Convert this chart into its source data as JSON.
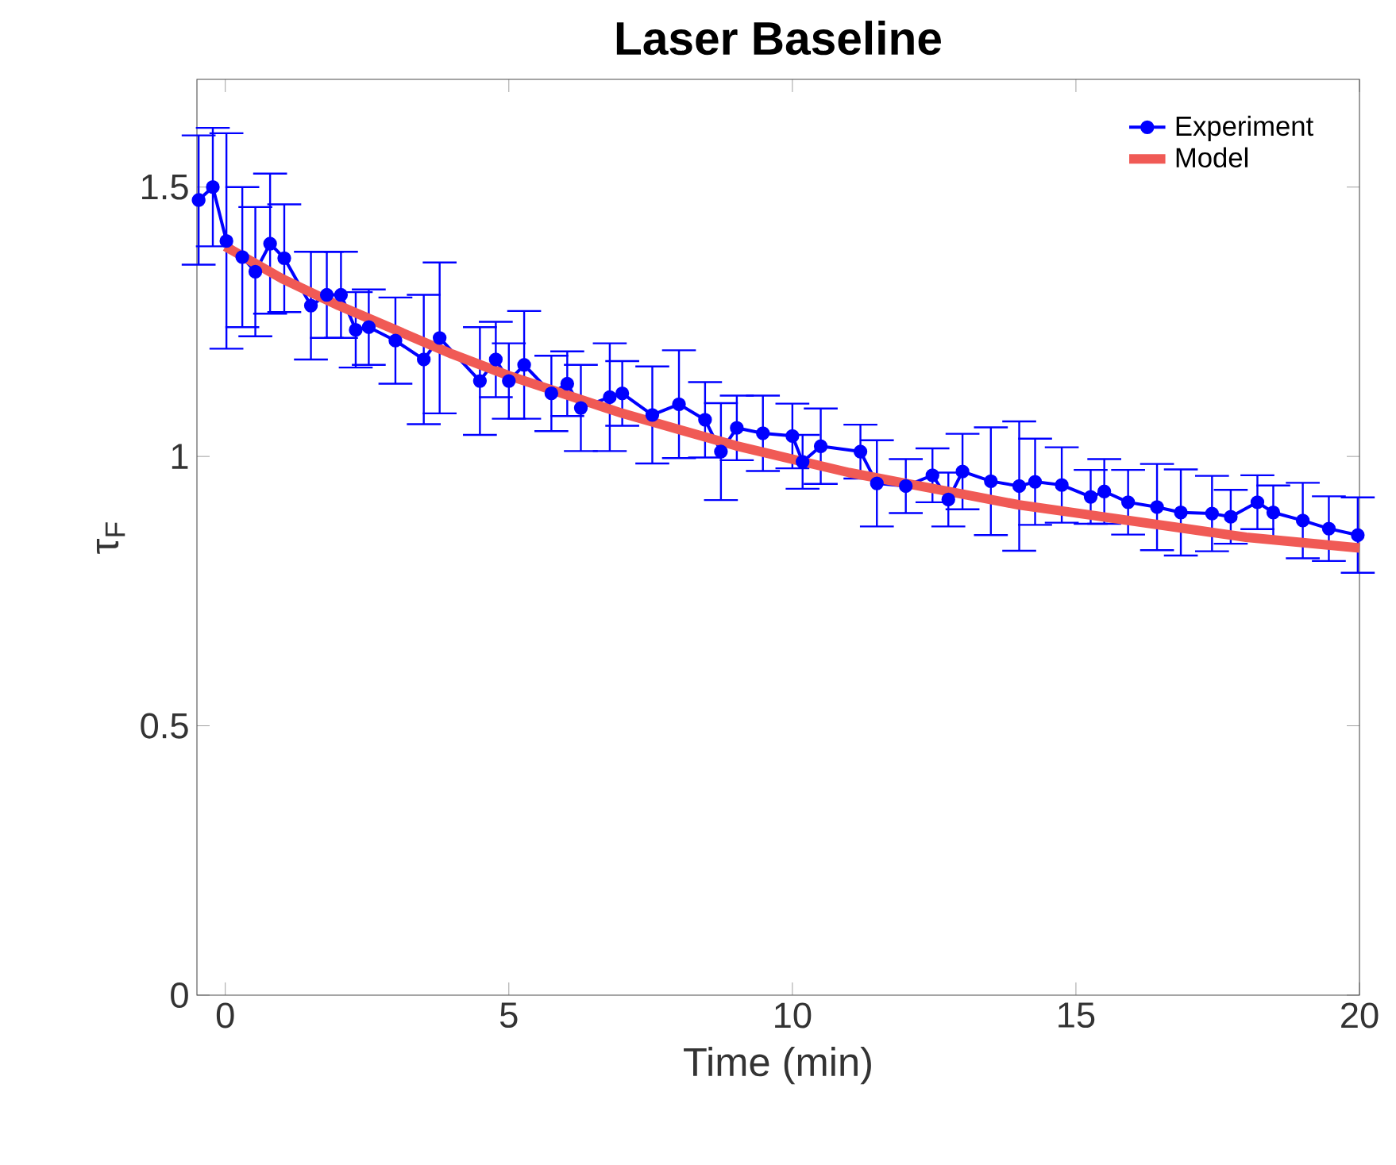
{
  "chart_data": {
    "type": "line",
    "title": "Laser Baseline",
    "xlabel": "Time (min)",
    "ylabel": "τ$_{F}$",
    "xlim": [
      -0.5,
      20
    ],
    "ylim": [
      0,
      1.7
    ],
    "xticks": [
      0,
      5,
      10,
      15,
      20
    ],
    "yticks": [
      0,
      0.5,
      1,
      1.5
    ],
    "grid": false,
    "legend": "top right",
    "series": [
      {
        "name": "Experiment",
        "color": "#0000ff",
        "marker": "circle",
        "x": [
          -0.47,
          -0.22,
          0.02,
          0.3,
          0.53,
          0.79,
          1.04,
          1.51,
          1.79,
          2.04,
          2.3,
          2.53,
          3.0,
          3.5,
          3.78,
          4.49,
          4.77,
          5.0,
          5.27,
          5.75,
          6.03,
          6.27,
          6.78,
          7.0,
          7.53,
          8.0,
          8.46,
          8.74,
          9.02,
          9.48,
          10.0,
          10.18,
          10.5,
          11.2,
          11.49,
          12.0,
          12.47,
          12.75,
          13.0,
          13.5,
          14.0,
          14.28,
          14.75,
          15.26,
          15.5,
          15.92,
          16.43,
          16.85,
          17.4,
          17.73,
          18.2,
          18.48,
          19.0,
          19.46,
          19.97
        ],
        "values": [
          1.476,
          1.5,
          1.4,
          1.37,
          1.343,
          1.395,
          1.368,
          1.28,
          1.3,
          1.3,
          1.235,
          1.24,
          1.215,
          1.18,
          1.22,
          1.14,
          1.18,
          1.14,
          1.17,
          1.117,
          1.135,
          1.09,
          1.11,
          1.117,
          1.077,
          1.097,
          1.068,
          1.009,
          1.053,
          1.043,
          1.038,
          0.99,
          1.019,
          1.009,
          0.95,
          0.945,
          0.965,
          0.92,
          0.972,
          0.954,
          0.945,
          0.953,
          0.947,
          0.925,
          0.935,
          0.915,
          0.906,
          0.896,
          0.894,
          0.888,
          0.915,
          0.896,
          0.881,
          0.866,
          0.854
        ],
        "errors": [
          0.12,
          0.11,
          0.2,
          0.13,
          0.12,
          0.13,
          0.1,
          0.1,
          0.08,
          0.08,
          0.07,
          0.07,
          0.08,
          0.12,
          0.14,
          0.1,
          0.07,
          0.07,
          0.1,
          0.07,
          0.06,
          0.08,
          0.1,
          0.06,
          0.09,
          0.1,
          0.07,
          0.09,
          0.06,
          0.07,
          0.06,
          0.05,
          0.07,
          0.05,
          0.08,
          0.05,
          0.05,
          0.05,
          0.07,
          0.1,
          0.12,
          0.08,
          0.07,
          0.05,
          0.06,
          0.06,
          0.08,
          0.08,
          0.07,
          0.05,
          0.05,
          0.05,
          0.07,
          0.06,
          0.07
        ]
      },
      {
        "name": "Model",
        "color": "#f05a55",
        "marker": "none",
        "x": [
          0,
          1,
          2,
          3,
          4,
          5,
          6,
          7,
          8,
          9,
          10,
          11,
          12,
          13,
          14,
          15,
          16,
          17,
          18,
          19,
          20
        ],
        "values": [
          1.39,
          1.33,
          1.28,
          1.235,
          1.19,
          1.15,
          1.115,
          1.08,
          1.05,
          1.02,
          0.995,
          0.97,
          0.95,
          0.93,
          0.91,
          0.895,
          0.88,
          0.865,
          0.85,
          0.84,
          0.83
        ]
      }
    ]
  }
}
